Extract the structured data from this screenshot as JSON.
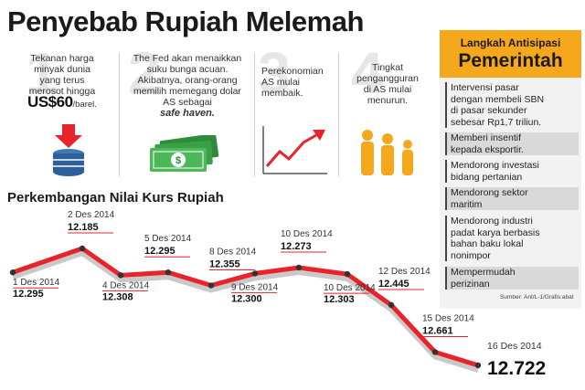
{
  "header": {
    "title": "Penyebab Rupiah Melemah"
  },
  "causes": [
    {
      "number": "1",
      "lines": [
        "Tekanan harga",
        "minyak dunia",
        "yang terus",
        "merosot hingga"
      ],
      "emph": "US$60",
      "emph_suffix": "/barel."
    },
    {
      "number": "2",
      "lines": [
        "The Fed akan menaikkan",
        "suku bunga acuan.",
        "Akibatnya, orang-orang",
        "memilih memegang dolar",
        "AS sebagai"
      ],
      "emph": "safe haven."
    },
    {
      "number": "3",
      "lines": [
        "Perekonomian",
        "AS mulai",
        "membaik."
      ]
    },
    {
      "number": "4",
      "lines": [
        "Tingkat",
        "pengangguran",
        "di AS mulai",
        "menurun."
      ]
    }
  ],
  "panel": {
    "title_small": "Langkah Antisipasi",
    "title_big": "Pemerintah",
    "items": [
      {
        "lines": [
          "Intervensi pasar",
          "dengan membeli SBN",
          "di pasar sekunder",
          "sebesar Rp1,7 triliun."
        ]
      },
      {
        "lines": [
          "Memberi insentif",
          "kepada eksportir."
        ]
      },
      {
        "lines": [
          "Mendorong investasi",
          "bidang pertanian"
        ]
      },
      {
        "lines": [
          "Mendorong sektor",
          "maritim"
        ]
      },
      {
        "lines": [
          "Mendorong industri",
          "padat karya berbasis",
          "bahan baku lokal",
          "nonimpor"
        ]
      },
      {
        "lines": [
          "Mempermudah",
          "perizinan"
        ]
      }
    ],
    "source": "Sumber: Ant/L-1/Grafis:abat"
  },
  "chart_data": {
    "type": "line",
    "title": "Perkembangan Nilai Kurs Rupiah",
    "x": [
      "1 Des 2014",
      "2 Des 2014",
      "4 Des 2014",
      "5 Des 2014",
      "8 Des 2014",
      "9 Des 2014",
      "10 Des 2014",
      "10 Des 2014",
      "12 Des 2014",
      "15 Des 2014",
      "16 Des 2014"
    ],
    "values": [
      12295,
      12185,
      12308,
      12295,
      12355,
      12300,
      12273,
      12303,
      12445,
      12661,
      12722
    ],
    "value_labels": [
      "12.295",
      "12.185",
      "12.308",
      "12.295",
      "12.355",
      "12.300",
      "12.273",
      "12.303",
      "12.445",
      "12.661",
      "12.722"
    ],
    "colors": {
      "line": "#e8232a",
      "shadow": "#c9c9c9",
      "marker": "#333333"
    }
  },
  "icons": {
    "cause1": "oil-barrel-down-icon",
    "cause2": "money-stack-icon",
    "cause3": "trend-up-icon",
    "cause4": "people-icon"
  }
}
